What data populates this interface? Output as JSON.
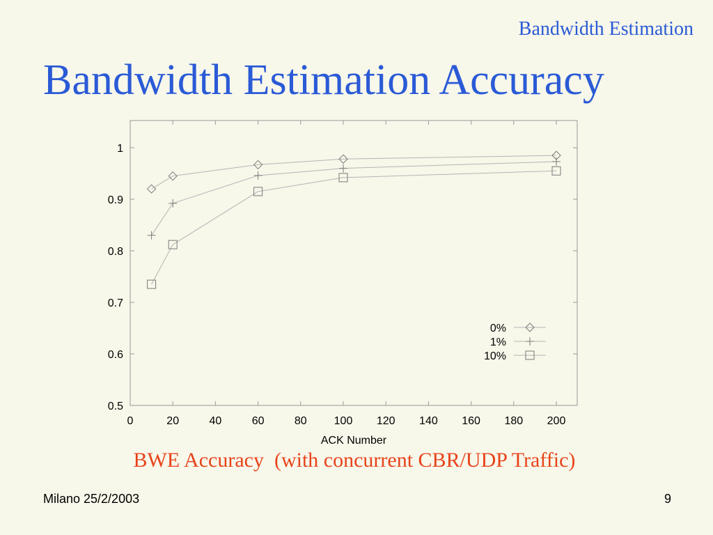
{
  "slide": {
    "header": "Bandwidth Estimation",
    "title": "Bandwidth Estimation Accuracy",
    "caption": "BWE Accuracy  (with concurrent CBR/UDP Traffic)",
    "footer_left": "Milano 25/2/2003",
    "page_number": "9"
  },
  "chart_data": {
    "type": "line",
    "xlabel": "ACK Number",
    "ylabel": "",
    "xlim": [
      0,
      210
    ],
    "ylim": [
      0.5,
      1.05
    ],
    "xticks": [
      0,
      20,
      40,
      60,
      80,
      100,
      120,
      140,
      160,
      180,
      200
    ],
    "yticks": [
      0.5,
      0.6,
      0.7,
      0.8,
      0.9,
      1
    ],
    "ytick_labels": [
      "0.5",
      "0.6",
      "0.7",
      "0.8",
      "0.9",
      "1"
    ],
    "grid": false,
    "legend_position": "bottom-right",
    "series": [
      {
        "name": "0%",
        "marker": "diamond",
        "x": [
          10,
          20,
          60,
          100,
          200
        ],
        "y": [
          0.92,
          0.945,
          0.967,
          0.978,
          0.985
        ]
      },
      {
        "name": "1%",
        "marker": "plus",
        "x": [
          10,
          20,
          60,
          100,
          200
        ],
        "y": [
          0.83,
          0.892,
          0.946,
          0.96,
          0.973
        ]
      },
      {
        "name": "10%",
        "marker": "square",
        "x": [
          10,
          20,
          60,
          100,
          200
        ],
        "y": [
          0.735,
          0.812,
          0.915,
          0.942,
          0.955
        ]
      }
    ]
  }
}
